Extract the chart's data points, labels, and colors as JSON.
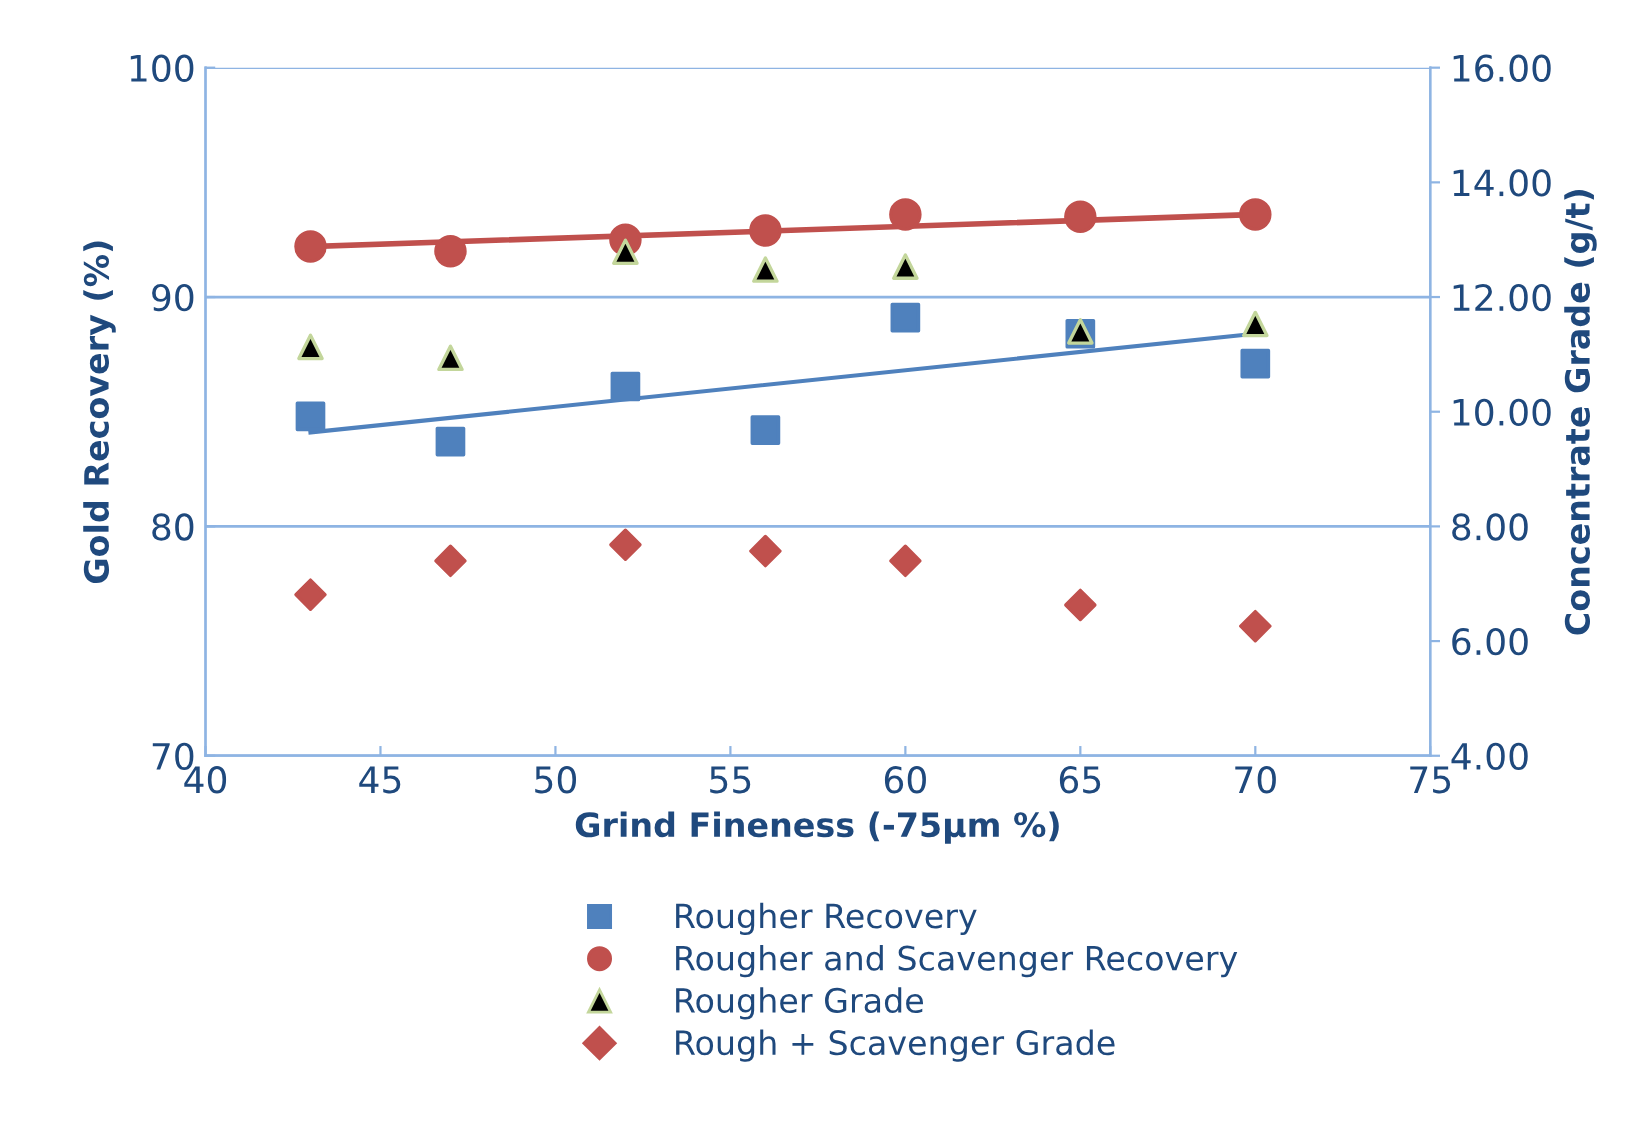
{
  "chart_data": {
    "type": "scatter",
    "xlabel": "Grind Fineness (-75µm %)",
    "ylabel": "Gold Recovery (%)",
    "y2label": "Concentrate Grade (g/t)",
    "x": [
      43,
      47,
      52,
      56,
      60,
      65,
      70
    ],
    "series": [
      {
        "name": "Rougher Recovery",
        "color": "#4f81bd",
        "marker": "square",
        "values": [
          84.8,
          83.7,
          86.1,
          84.2,
          89.1,
          88.4,
          87.1
        ]
      },
      {
        "name": "Rougher and Scavenger Recovery",
        "color": "#c0504d",
        "marker": "circle",
        "values": [
          92.2,
          92.0,
          92.5,
          92.9,
          93.6,
          93.5,
          93.6
        ]
      },
      {
        "name": "Rougher Grade",
        "color": "#000000",
        "marker": "triangle",
        "axis": "y2",
        "values": [
          11.13,
          10.94,
          12.79,
          12.48,
          12.53,
          11.4,
          11.53
        ]
      },
      {
        "name": "Rough + Scavenger Grade",
        "color": "#c0504d",
        "marker": "diamond",
        "axis": "y2",
        "values": [
          6.81,
          7.4,
          7.68,
          7.57,
          7.4,
          6.63,
          6.26
        ]
      },
      {
        "type": "line",
        "color": "#c0504d",
        "values": [
          92.2,
          null,
          null,
          null,
          null,
          null,
          93.6
        ]
      },
      {
        "type": "line",
        "color": "#4f81bd",
        "values": [
          84.1,
          null,
          null,
          null,
          null,
          null,
          88.4
        ]
      }
    ],
    "xlim": [
      40,
      75
    ],
    "xticks": [
      40,
      45,
      50,
      55,
      60,
      65,
      70,
      75
    ],
    "ylim": [
      70,
      100
    ],
    "yticks": [
      70,
      80,
      90,
      100
    ],
    "y2lim": [
      4,
      16
    ],
    "y2ticks": [
      {
        "value": 4,
        "label": "4.00"
      },
      {
        "value": 6,
        "label": "6.00"
      },
      {
        "value": 8,
        "label": "8.00"
      },
      {
        "value": 10,
        "label": "10.00"
      },
      {
        "value": 12,
        "label": "12.00"
      },
      {
        "value": 14,
        "label": "14.00"
      },
      {
        "value": 16,
        "label": "16.00"
      }
    ],
    "grid": "y",
    "legend": "bottom"
  }
}
